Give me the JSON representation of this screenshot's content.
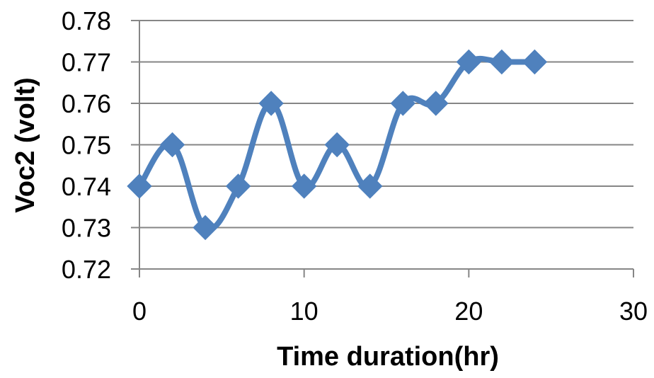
{
  "chart_data": {
    "type": "line",
    "title": "",
    "xlabel": "Time duration(hr)",
    "ylabel": "Voc2 (volt)",
    "xlim": [
      0,
      30
    ],
    "ylim": [
      0.72,
      0.78
    ],
    "x_ticks": [
      "0",
      "10",
      "20",
      "30"
    ],
    "y_ticks": [
      "0.72",
      "0.73",
      "0.74",
      "0.75",
      "0.76",
      "0.77",
      "0.78"
    ],
    "grid": true,
    "smooth": true,
    "marker": "diamond",
    "series_color": "#4F81BD",
    "series": [
      {
        "x": [
          0,
          2,
          4,
          6,
          8,
          10,
          12,
          14,
          16,
          18,
          20,
          22,
          24
        ],
        "values": [
          0.74,
          0.75,
          0.73,
          0.74,
          0.76,
          0.74,
          0.75,
          0.74,
          0.76,
          0.76,
          0.77,
          0.77,
          0.77
        ]
      }
    ]
  }
}
